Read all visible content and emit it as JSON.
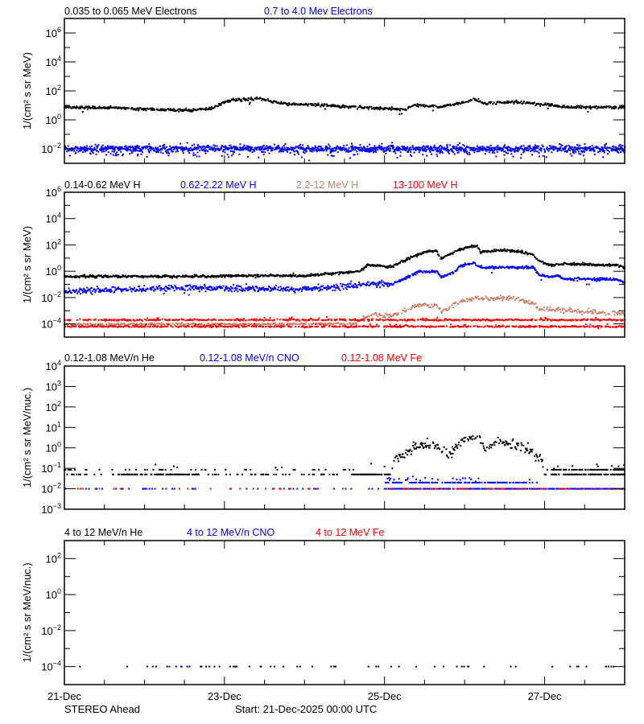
{
  "figure": {
    "spacecraft": "STEREO Ahead",
    "start_label": "Start: 21-Dec-2025 00:00 UTC"
  },
  "x_axis": {
    "type": "time",
    "range": [
      "2025-12-21T00:00",
      "2025-12-28T00:00"
    ],
    "major_tick_labels": [
      "21-Dec",
      "23-Dec",
      "25-Dec",
      "27-Dec"
    ],
    "major_tick_times": [
      "2025-12-21T00:00",
      "2025-12-23T00:00",
      "2025-12-25T00:00",
      "2025-12-27T00:00"
    ],
    "minor_tick_interval_hours": 12
  },
  "chart_data": [
    {
      "type": "scatter",
      "yscale": "log",
      "ylim": [
        0.001,
        10000000.0
      ],
      "ytick_label_exponents": [
        -2,
        0,
        2,
        4,
        6
      ],
      "ylabel": "1/(cm² s sr MeV)",
      "grid": false,
      "series": [
        {
          "name": "0.035 to 0.065 MeV Electrons",
          "color": "#000000",
          "points": [
            [
              "2025-12-21T00:00",
              8
            ],
            [
              "2025-12-22T14:00",
              4.5
            ],
            [
              "2025-12-22T20:00",
              6
            ],
            [
              "2025-12-23T02:00",
              25
            ],
            [
              "2025-12-23T10:00",
              28
            ],
            [
              "2025-12-23T18:00",
              13
            ],
            [
              "2025-12-24T15:00",
              8
            ],
            [
              "2025-12-25T00:00",
              6
            ],
            [
              "2025-12-25T06:00",
              5
            ],
            [
              "2025-12-25T09:00",
              11
            ],
            [
              "2025-12-25T16:00",
              8
            ],
            [
              "2025-12-25T22:00",
              13
            ],
            [
              "2025-12-26T03:00",
              28
            ],
            [
              "2025-12-26T06:00",
              13
            ],
            [
              "2025-12-26T15:00",
              18
            ],
            [
              "2025-12-26T20:00",
              15
            ],
            [
              "2025-12-27T05:00",
              8
            ],
            [
              "2025-12-28T00:00",
              7
            ]
          ]
        },
        {
          "name": "0.7 to 4.0 Mev Electrons",
          "color": "#0000ff",
          "points": [
            [
              "2025-12-21T00:00",
              0.01
            ],
            [
              "2025-12-28T00:00",
              0.01
            ]
          ]
        }
      ]
    },
    {
      "type": "scatter",
      "yscale": "log",
      "ylim": [
        1e-05,
        1000000.0
      ],
      "ytick_label_exponents": [
        -4,
        -2,
        0,
        2,
        4,
        6
      ],
      "ylabel": "1/(cm² s sr MeV)",
      "grid": false,
      "series": [
        {
          "name": "0.14-0.62 MeV H",
          "color": "#000000",
          "points": [
            [
              "2025-12-21T00:00",
              0.4
            ],
            [
              "2025-12-22T14:00",
              0.4
            ],
            [
              "2025-12-23T05:00",
              0.45
            ],
            [
              "2025-12-24T00:00",
              0.45
            ],
            [
              "2025-12-24T16:30",
              1.0
            ],
            [
              "2025-12-24T19:00",
              3
            ],
            [
              "2025-12-25T02:00",
              2.1
            ],
            [
              "2025-12-25T07:00",
              8.7
            ],
            [
              "2025-12-25T12:30",
              31
            ],
            [
              "2025-12-25T15:45",
              35
            ],
            [
              "2025-12-25T16:40",
              8.7
            ],
            [
              "2025-12-25T20:00",
              23
            ],
            [
              "2025-12-25T22:50",
              47
            ],
            [
              "2025-12-26T02:25",
              81
            ],
            [
              "2025-12-26T03:50",
              81
            ],
            [
              "2025-12-26T04:50",
              27
            ],
            [
              "2025-12-26T10:20",
              40
            ],
            [
              "2025-12-26T17:00",
              31
            ],
            [
              "2025-12-26T20:40",
              17
            ],
            [
              "2025-12-26T22:25",
              5.8
            ],
            [
              "2025-12-27T02:30",
              2.8
            ],
            [
              "2025-12-27T05:40",
              3.7
            ],
            [
              "2025-12-27T21:50",
              2.8
            ],
            [
              "2025-12-28T00:00",
              1.9
            ]
          ]
        },
        {
          "name": "0.62-2.22 MeV H",
          "color": "#0000ff",
          "points": [
            [
              "2025-12-21T00:00",
              0.032
            ],
            [
              "2025-12-22T14:00",
              0.055
            ],
            [
              "2025-12-24T00:00",
              0.042
            ],
            [
              "2025-12-24T16:30",
              0.085
            ],
            [
              "2025-12-24T19:00",
              0.126
            ],
            [
              "2025-12-25T02:00",
              0.1
            ],
            [
              "2025-12-25T07:00",
              0.35
            ],
            [
              "2025-12-25T10:00",
              0.91
            ],
            [
              "2025-12-25T15:45",
              0.91
            ],
            [
              "2025-12-25T17:00",
              0.35
            ],
            [
              "2025-12-25T21:00",
              0.9
            ],
            [
              "2025-12-25T22:50",
              2.8
            ],
            [
              "2025-12-26T03:00",
              4.3
            ],
            [
              "2025-12-26T04:50",
              1.9
            ],
            [
              "2025-12-26T13:30",
              2.0
            ],
            [
              "2025-12-26T20:40",
              1.9
            ],
            [
              "2025-12-26T22:25",
              0.52
            ],
            [
              "2025-12-27T02:30",
              0.35
            ],
            [
              "2025-12-27T04:00",
              0.52
            ],
            [
              "2025-12-27T05:40",
              0.26
            ],
            [
              "2025-12-27T21:50",
              0.25
            ],
            [
              "2025-12-28T00:00",
              0.13
            ]
          ]
        },
        {
          "name": "2.2-12 MeV H",
          "color": "#c88068",
          "points": [
            [
              "2025-12-21T00:00",
              9e-05
            ],
            [
              "2025-12-24T15:00",
              0.0001
            ],
            [
              "2025-12-24T19:00",
              0.0004
            ],
            [
              "2025-12-25T02:00",
              0.0004
            ],
            [
              "2025-12-25T10:00",
              0.0025
            ],
            [
              "2025-12-25T15:45",
              0.0025
            ],
            [
              "2025-12-25T17:00",
              0.0008
            ],
            [
              "2025-12-25T22:50",
              0.005
            ],
            [
              "2025-12-26T03:00",
              0.009
            ],
            [
              "2025-12-26T15:00",
              0.009
            ],
            [
              "2025-12-26T20:40",
              0.0032
            ],
            [
              "2025-12-26T23:00",
              0.0013
            ],
            [
              "2025-12-27T09:00",
              0.001
            ],
            [
              "2025-12-28T00:00",
              0.0006
            ]
          ]
        },
        {
          "name": "13-100 MeV H",
          "color": "#ff0000",
          "levels": [
            0.0002,
            6.3e-05
          ]
        }
      ]
    },
    {
      "type": "scatter",
      "yscale": "log",
      "ylim": [
        0.001,
        10000.0
      ],
      "ytick_label_exponents": [
        -3,
        -2,
        -1,
        0,
        1,
        2,
        3,
        4
      ],
      "ylabel": "1/(cm² s sr MeV/nuc.)",
      "grid": false,
      "series": [
        {
          "name": "0.12-1.08 MeV/n He",
          "color": "#000000",
          "levels": [
            0.05,
            0.085,
            0.13
          ],
          "points": [
            [
              "2025-12-21T00:00",
              0.05
            ],
            [
              "2025-12-25T01:00",
              0.05
            ],
            [
              "2025-12-25T03:00",
              0.3
            ],
            [
              "2025-12-25T07:00",
              0.56
            ],
            [
              "2025-12-25T10:00",
              1.38
            ],
            [
              "2025-12-25T16:00",
              1.3
            ],
            [
              "2025-12-25T19:00",
              0.35
            ],
            [
              "2025-12-25T21:00",
              1.0
            ],
            [
              "2025-12-25T23:00",
              2.4
            ],
            [
              "2025-12-26T03:00",
              3.4
            ],
            [
              "2025-12-26T05:00",
              2.2
            ],
            [
              "2025-12-26T06:00",
              0.74
            ],
            [
              "2025-12-26T09:00",
              2.2
            ],
            [
              "2025-12-26T15:00",
              1.4
            ],
            [
              "2025-12-26T21:00",
              0.56
            ],
            [
              "2025-12-26T23:00",
              0.25
            ],
            [
              "2025-12-27T01:00",
              0.05
            ],
            [
              "2025-12-28T00:00",
              0.05
            ]
          ]
        },
        {
          "name": "0.12-1.08 MeV/n CNO",
          "color": "#0000ff",
          "levels": [
            0.01,
            0.02,
            0.03
          ]
        },
        {
          "name": "0.12-1.08 MeV Fe",
          "color": "#ff0000",
          "levels": [
            0.01
          ]
        }
      ]
    },
    {
      "type": "scatter",
      "yscale": "log",
      "ylim": [
        1e-05,
        1000.0
      ],
      "ytick_label_exponents": [
        -4,
        -2,
        0,
        2
      ],
      "ylabel": "1/(cm² s sr MeV/nuc.)",
      "grid": false,
      "series": [
        {
          "name": "4 to 12 MeV/n He",
          "color": "#000000",
          "levels": [
            0.0001
          ]
        },
        {
          "name": "4 to 12 MeV/n CNO",
          "color": "#0000ff",
          "levels": [
            0.0001
          ]
        },
        {
          "name": "4 to 12 MeV Fe",
          "color": "#ff0000",
          "levels": [
            0.0001
          ]
        }
      ]
    }
  ]
}
